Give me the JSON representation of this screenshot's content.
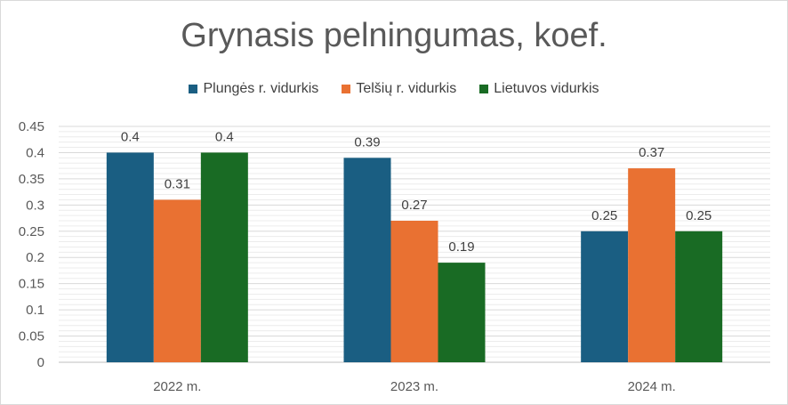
{
  "chart_data": {
    "type": "bar",
    "title": "Grynasis pelningumas, koef.",
    "categories": [
      "2022 m.",
      "2023 m.",
      "2024 m."
    ],
    "series": [
      {
        "name": "Plungės r. vidurkis",
        "values": [
          0.4,
          0.39,
          0.25
        ],
        "color": "#1a5e82"
      },
      {
        "name": "Telšių r. vidurkis",
        "values": [
          0.31,
          0.27,
          0.37
        ],
        "color": "#e97132"
      },
      {
        "name": "Lietuvos vidurkis",
        "values": [
          0.4,
          0.19,
          0.25
        ],
        "color": "#196b24"
      }
    ],
    "ylim": [
      0,
      0.45
    ],
    "yticks": [
      "0",
      "0.05",
      "0.1",
      "0.15",
      "0.2",
      "0.25",
      "0.3",
      "0.35",
      "0.4",
      "0.45"
    ],
    "legend_position": "top",
    "grid": true
  }
}
